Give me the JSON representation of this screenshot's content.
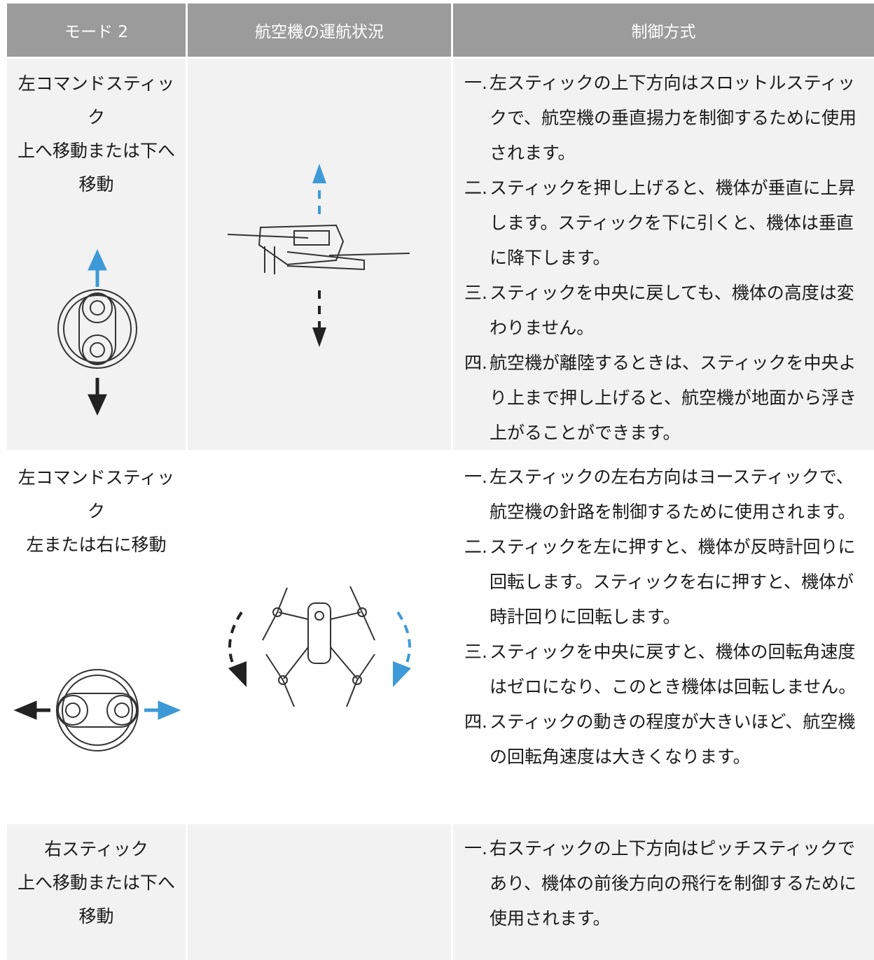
{
  "table": {
    "headers": [
      "モード 2",
      "航空機の運航状況",
      "制御方式"
    ],
    "rows": [
      {
        "control": [
          "左コマンドスティック",
          "上へ移動または下へ移動"
        ],
        "items": [
          {
            "marker": "一.",
            "text": "左スティックの上下方向はスロットルスティックで、航空機の垂直揚力を制御するために使用されます。"
          },
          {
            "marker": "二.",
            "text": "スティックを押し上げると、機体が垂直に上昇します。スティックを下に引くと、機体は垂直に降下します。"
          },
          {
            "marker": "三.",
            "text": "スティックを中央に戻しても、機体の高度は変わりません。"
          },
          {
            "marker": "四.",
            "text": "航空機が離陸するときは、スティックを中央より上まで押し上げると、航空機が地面から浮き上がることができます。"
          }
        ]
      },
      {
        "control": [
          "左コマンドスティック",
          "左または右に移動"
        ],
        "items": [
          {
            "marker": "一.",
            "text": "左スティックの左右方向はヨースティックで、航空機の針路を制御するために使用されます。"
          },
          {
            "marker": "二.",
            "text": "スティックを左に押すと、機体が反時計回りに回転します。スティックを右に押すと、機体が時計回りに回転します。"
          },
          {
            "marker": "三.",
            "text": "スティックを中央に戻すと、機体の回転角速度はゼロになり、このとき機体は回転しません。"
          },
          {
            "marker": "四.",
            "text": "スティックの動きの程度が大きいほど、航空機の回転角速度は大きくなります。"
          }
        ]
      },
      {
        "control": [
          "右スティック",
          "上へ移動または下へ移動"
        ],
        "items": [
          {
            "marker": "一.",
            "text": "右スティックの上下方向はピッチスティックであり、機体の前後方向の飛行を制御するために使用されます。"
          }
        ]
      }
    ]
  }
}
